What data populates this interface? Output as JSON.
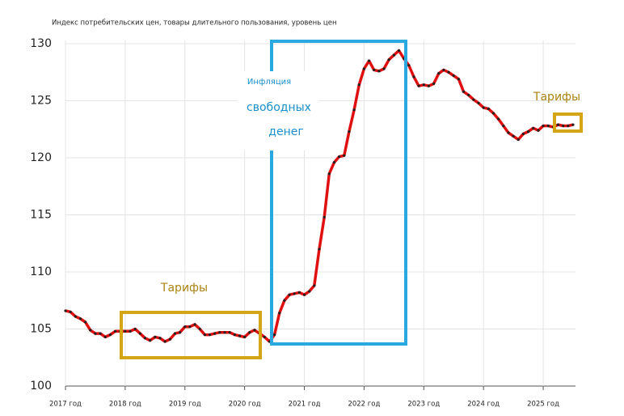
{
  "chart_data": {
    "type": "line",
    "title": "Индекс потребительских цен, товары длительного пользования, уровень цен",
    "categories": [
      "2017 год",
      null,
      null,
      null,
      null,
      null,
      null,
      null,
      null,
      null,
      null,
      null,
      "2018 год",
      null,
      null,
      null,
      null,
      null,
      null,
      null,
      null,
      null,
      null,
      null,
      "2019 год",
      null,
      null,
      null,
      null,
      null,
      null,
      null,
      null,
      null,
      null,
      null,
      "2020 год",
      null,
      null,
      null,
      null,
      null,
      null,
      null,
      null,
      null,
      null,
      null,
      "2021 год",
      null,
      null,
      null,
      null,
      null,
      null,
      null,
      null,
      null,
      null,
      null,
      "2022 год",
      null,
      null,
      null,
      null,
      null,
      null,
      null,
      null,
      null,
      null,
      null,
      "2023 год",
      null,
      null,
      null,
      null,
      null,
      null,
      null,
      null,
      null,
      null,
      null,
      "2024 год",
      null,
      null,
      null,
      null,
      null,
      null,
      null,
      null,
      null,
      null,
      null,
      "2025 год",
      null,
      null,
      null,
      null,
      null,
      null
    ],
    "series": [
      {
        "color": "#e01010",
        "values": [
          106.6,
          106.5,
          106.1,
          105.9,
          105.6,
          104.9,
          104.6,
          104.6,
          104.3,
          104.5,
          104.8,
          104.8,
          104.8,
          104.8,
          105.0,
          104.6,
          104.2,
          104.0,
          104.3,
          104.2,
          103.9,
          104.1,
          104.6,
          104.7,
          105.2,
          105.2,
          105.4,
          105.0,
          104.5,
          104.5,
          104.6,
          104.7,
          104.7,
          104.7,
          104.5,
          104.4,
          104.3,
          104.7,
          104.9,
          104.6,
          104.3,
          103.9,
          104.5,
          106.4,
          107.5,
          108.0,
          108.1,
          108.2,
          108.0,
          108.3,
          108.8,
          112.0,
          114.8,
          118.6,
          119.6,
          120.1,
          120.2,
          122.3,
          124.2,
          126.4,
          127.8,
          128.5,
          127.7,
          127.6,
          127.8,
          128.6,
          129.0,
          129.4,
          128.7,
          128.1,
          127.1,
          126.3,
          126.4,
          126.3,
          126.5,
          127.4,
          127.7,
          127.5,
          127.2,
          126.9,
          125.8,
          125.5,
          125.1,
          124.8,
          124.4,
          124.3,
          123.9,
          123.4,
          122.8,
          122.2,
          121.9,
          121.6,
          122.1,
          122.3,
          122.6,
          122.4,
          122.8,
          122.8,
          122.7,
          122.9,
          122.8,
          122.8,
          122.9
        ]
      }
    ],
    "ylim": [
      100,
      130
    ],
    "yticks": [
      100,
      105,
      110,
      115,
      120,
      125,
      130
    ],
    "grid": true,
    "annotations": [
      {
        "text": "Тарифы"
      },
      {
        "lines": [
          "Инфляция",
          "свободных",
          "денег"
        ]
      },
      {
        "text": "Тарифы"
      }
    ]
  }
}
